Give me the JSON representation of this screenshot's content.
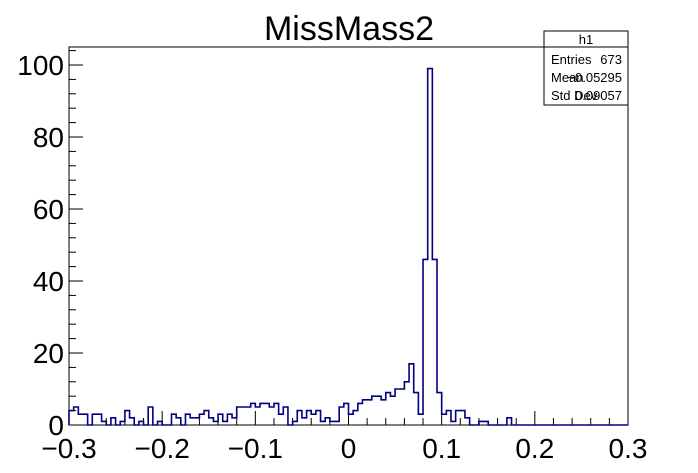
{
  "chart_data": {
    "type": "bar",
    "title": "MissMass2",
    "xlabel": "",
    "ylabel": "",
    "xlim": [
      -0.3,
      0.3
    ],
    "ylim": [
      0,
      105
    ],
    "bin_width": 0.005,
    "x_ticks": [
      "−0.3",
      "−0.2",
      "−0.1",
      "0",
      "0.1",
      "0.2",
      "0.3"
    ],
    "y_ticks": [
      "0",
      "20",
      "40",
      "60",
      "80",
      "100"
    ],
    "series": [
      {
        "color": "#000080",
        "values": [
          4,
          5,
          3,
          3,
          0,
          3,
          3,
          1,
          0,
          2,
          0,
          1,
          4,
          2,
          0,
          1,
          0,
          5,
          0,
          1,
          0,
          0,
          3,
          2,
          0,
          3,
          2,
          2,
          3,
          4,
          2,
          1,
          3,
          1,
          3,
          2,
          5,
          5,
          5,
          6,
          5,
          6,
          6,
          5,
          6,
          3,
          5,
          0,
          1,
          4,
          2,
          4,
          3,
          4,
          1,
          2,
          1,
          1,
          5,
          6,
          3,
          4,
          6,
          7,
          7,
          8,
          8,
          7,
          9,
          8,
          10,
          10,
          12,
          17,
          9,
          3,
          46,
          99,
          46,
          9,
          3,
          4,
          1,
          4,
          4,
          2,
          0,
          0,
          1,
          1,
          0,
          0,
          0,
          0,
          2,
          0,
          0,
          0,
          0,
          0,
          0,
          0,
          0,
          0,
          0,
          0,
          0,
          0,
          0,
          0,
          0,
          0,
          0,
          0,
          0,
          0,
          0,
          0,
          0,
          0
        ]
      }
    ],
    "stats_box": {
      "name": "h1",
      "rows": [
        {
          "label": "Entries",
          "value": "673"
        },
        {
          "label": "Mean",
          "value": "−0.05295"
        },
        {
          "label": "Std Dev",
          "value": "0.09057"
        }
      ]
    }
  }
}
